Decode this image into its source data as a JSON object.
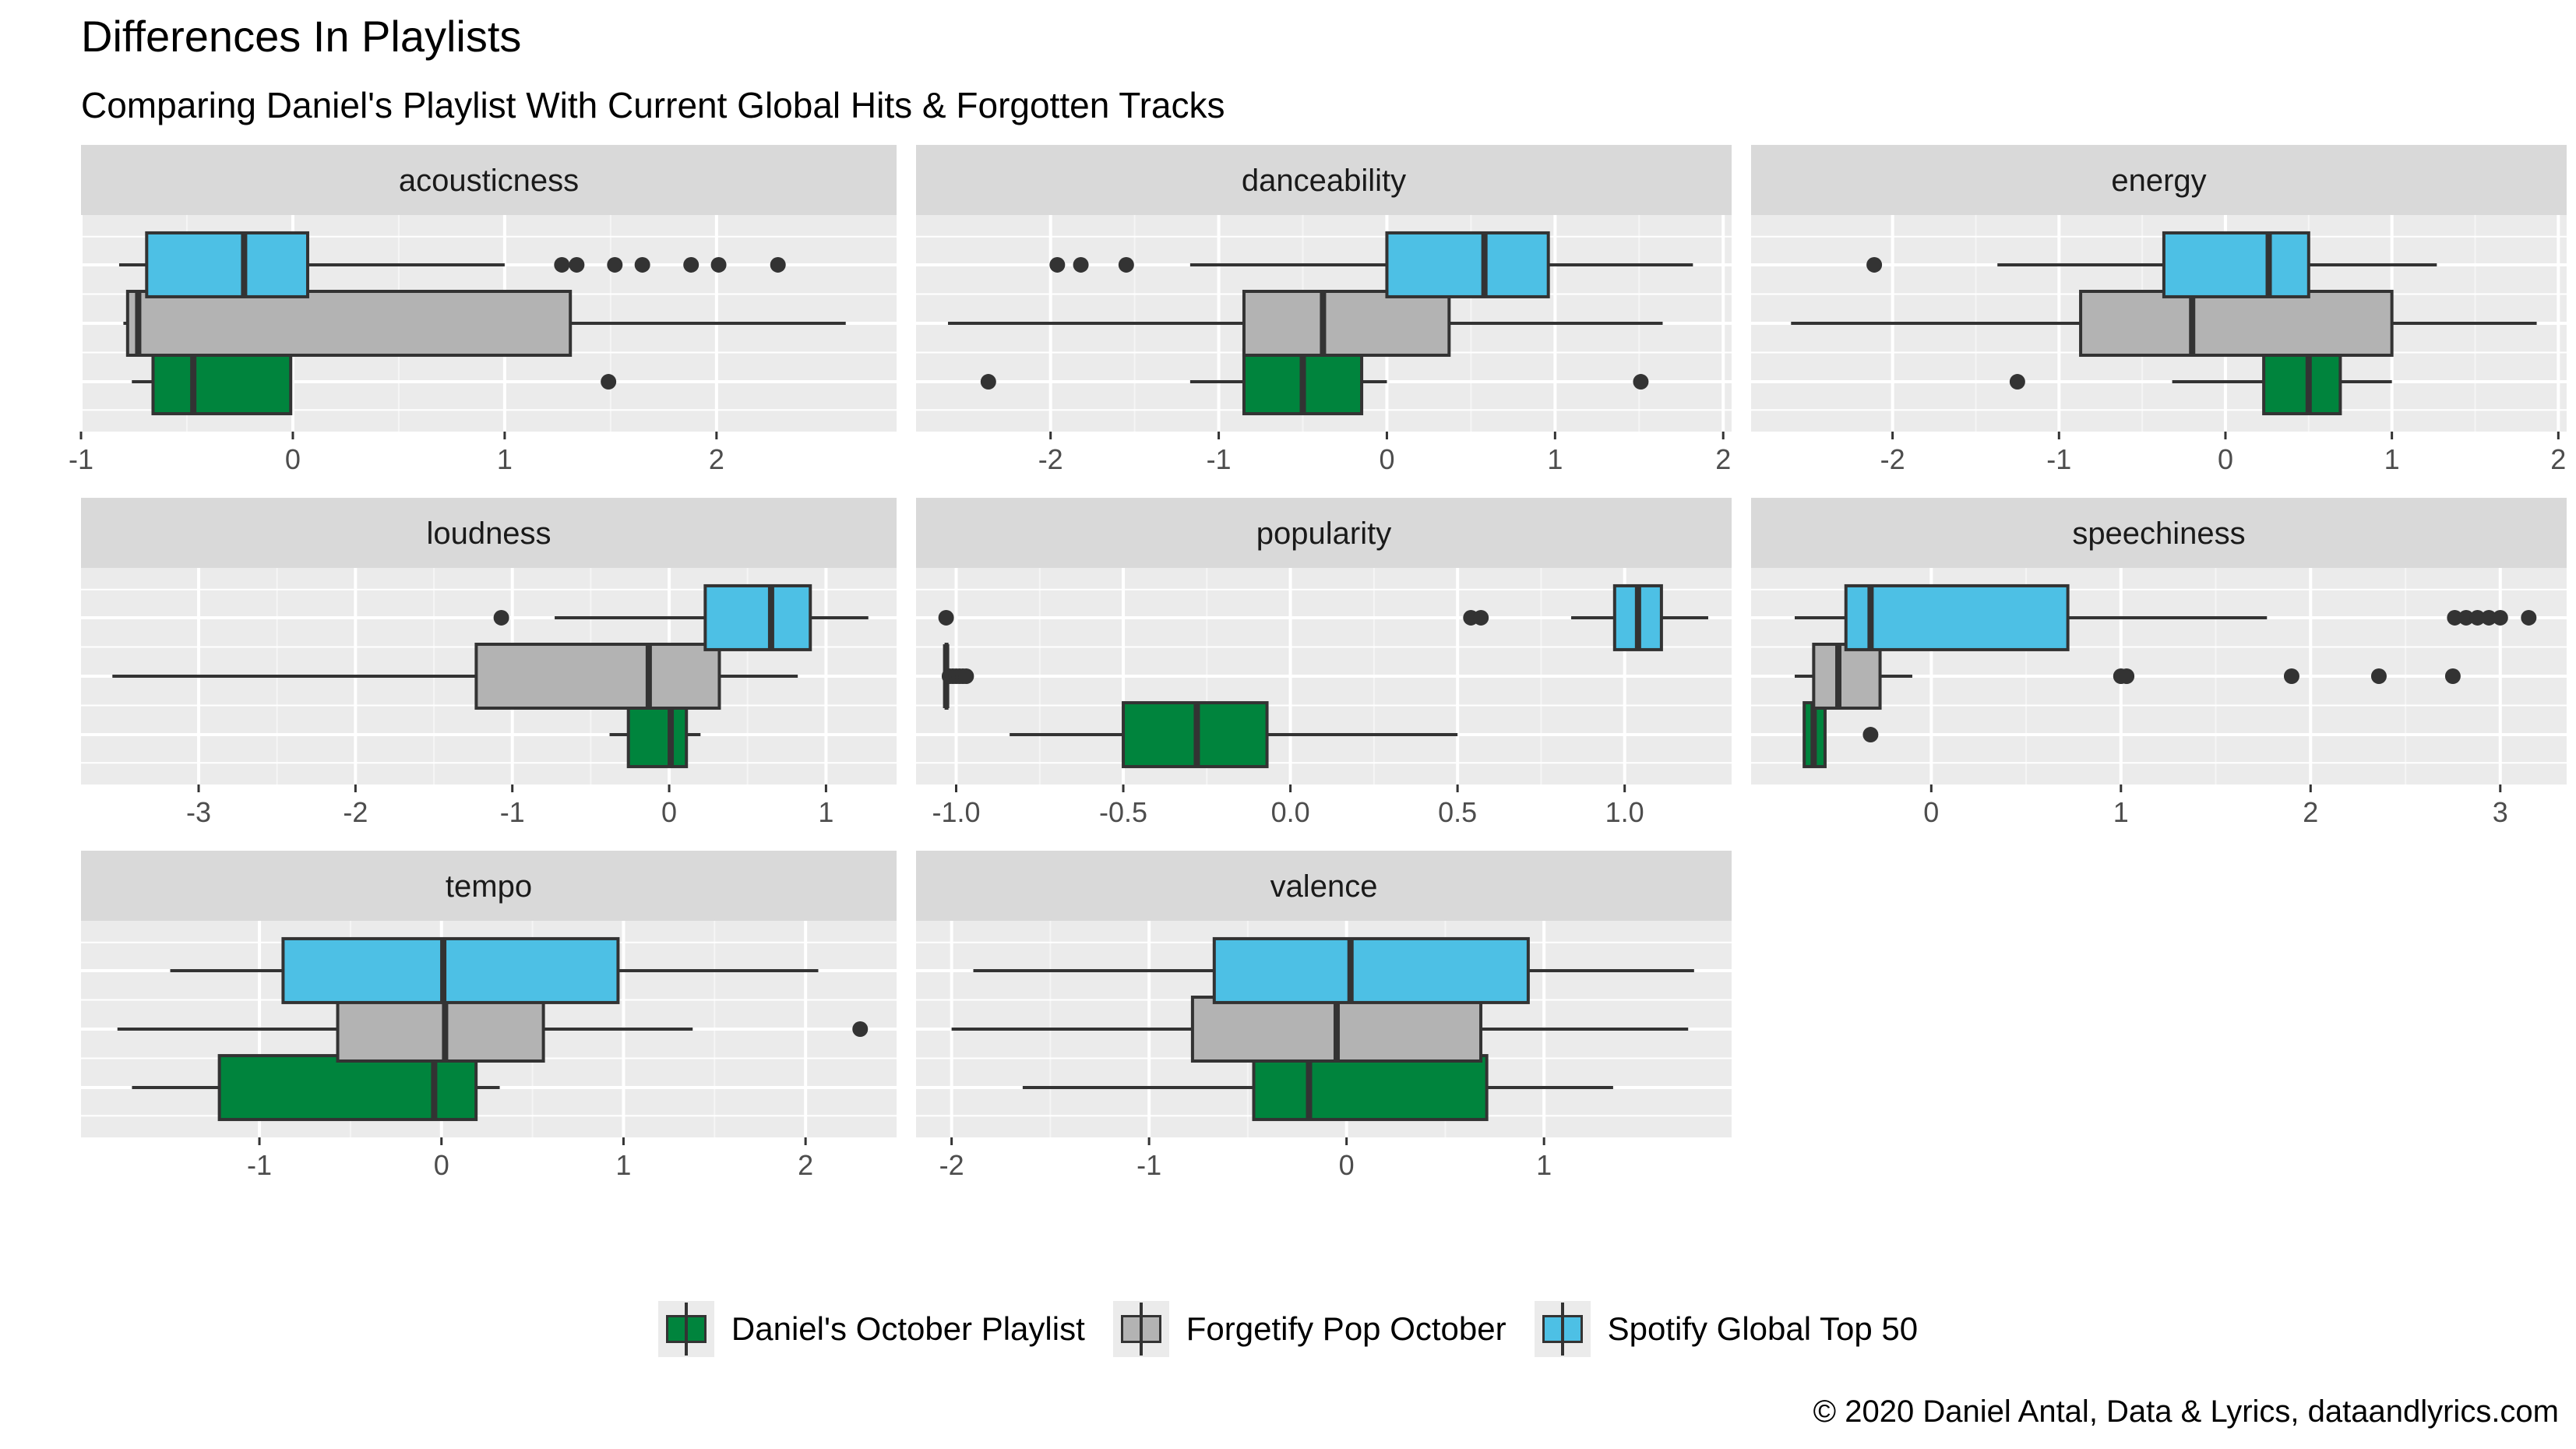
{
  "title": "Differences In Playlists",
  "subtitle": "Comparing Daniel's Playlist With Current Global Hits & Forgotten Tracks",
  "caption": "© 2020 Daniel Antal, Data & Lyrics, dataandlyrics.com",
  "chart_data": {
    "type": "boxplot",
    "orientation": "horizontal",
    "grid": true,
    "legend_position": "bottom",
    "series": [
      {
        "name": "Daniel's October Playlist",
        "color": "#00843D"
      },
      {
        "name": "Forgetify Pop October",
        "color": "#B3B3B3"
      },
      {
        "name": "Spotify Global Top 50",
        "color": "#4DC0E5"
      }
    ],
    "panels": [
      {
        "name": "acousticness",
        "xlim": [
          -1,
          2.85
        ],
        "ticks": [
          -1,
          0,
          1,
          2
        ],
        "boxes": [
          {
            "series": "Daniel's October Playlist",
            "whisker_low": -0.76,
            "q1": -0.66,
            "median": -0.47,
            "q3": -0.01,
            "whisker_high": -0.01,
            "outliers": [
              1.49
            ]
          },
          {
            "series": "Forgetify Pop October",
            "whisker_low": -0.8,
            "q1": -0.78,
            "median": -0.73,
            "q3": 1.31,
            "whisker_high": 2.61,
            "outliers": []
          },
          {
            "series": "Spotify Global Top 50",
            "whisker_low": -0.82,
            "q1": -0.69,
            "median": -0.23,
            "q3": 0.07,
            "whisker_high": 1.0,
            "outliers": [
              1.27,
              1.34,
              1.52,
              1.65,
              1.88,
              2.01,
              2.29
            ]
          }
        ]
      },
      {
        "name": "danceability",
        "xlim": [
          -2.8,
          2.05
        ],
        "ticks": [
          -2,
          -1,
          0,
          1,
          2
        ],
        "boxes": [
          {
            "series": "Daniel's October Playlist",
            "whisker_low": -1.17,
            "q1": -0.85,
            "median": -0.5,
            "q3": -0.15,
            "whisker_high": 0.0,
            "outliers": [
              -2.37,
              1.51
            ]
          },
          {
            "series": "Forgetify Pop October",
            "whisker_low": -2.61,
            "q1": -0.85,
            "median": -0.38,
            "q3": 0.37,
            "whisker_high": 1.64,
            "outliers": []
          },
          {
            "series": "Spotify Global Top 50",
            "whisker_low": -1.17,
            "q1": 0.0,
            "median": 0.58,
            "q3": 0.96,
            "whisker_high": 1.82,
            "outliers": [
              -1.96,
              -1.82,
              -1.55
            ]
          }
        ]
      },
      {
        "name": "energy",
        "xlim": [
          -2.85,
          2.05
        ],
        "ticks": [
          -2,
          -1,
          0,
          1,
          2
        ],
        "boxes": [
          {
            "series": "Daniel's October Playlist",
            "whisker_low": -0.32,
            "q1": 0.23,
            "median": 0.5,
            "q3": 0.69,
            "whisker_high": 1.0,
            "outliers": [
              -1.25
            ]
          },
          {
            "series": "Forgetify Pop October",
            "whisker_low": -2.61,
            "q1": -0.87,
            "median": -0.2,
            "q3": 1.0,
            "whisker_high": 1.87,
            "outliers": []
          },
          {
            "series": "Spotify Global Top 50",
            "whisker_low": -1.37,
            "q1": -0.37,
            "median": 0.26,
            "q3": 0.5,
            "whisker_high": 1.27,
            "outliers": [
              -2.11
            ]
          }
        ]
      },
      {
        "name": "loudness",
        "xlim": [
          -3.75,
          1.45
        ],
        "ticks": [
          -3,
          -2,
          -1,
          0,
          1
        ],
        "boxes": [
          {
            "series": "Daniel's October Playlist",
            "whisker_low": -0.38,
            "q1": -0.26,
            "median": 0.01,
            "q3": 0.11,
            "whisker_high": 0.2,
            "outliers": []
          },
          {
            "series": "Forgetify Pop October",
            "whisker_low": -3.55,
            "q1": -1.23,
            "median": -0.13,
            "q3": 0.32,
            "whisker_high": 0.82,
            "outliers": []
          },
          {
            "series": "Spotify Global Top 50",
            "whisker_low": -0.73,
            "q1": 0.23,
            "median": 0.65,
            "q3": 0.9,
            "whisker_high": 1.27,
            "outliers": [
              -1.07
            ]
          }
        ]
      },
      {
        "name": "popularity",
        "xlim": [
          -1.12,
          1.32
        ],
        "ticks": [
          -1.0,
          -0.5,
          0.0,
          0.5,
          1.0
        ],
        "tick_labels": [
          "-1.0",
          "-0.5",
          "0.0",
          "0.5",
          "1.0"
        ],
        "boxes": [
          {
            "series": "Daniel's October Playlist",
            "whisker_low": -0.84,
            "q1": -0.5,
            "median": -0.28,
            "q3": -0.07,
            "whisker_high": 0.5,
            "outliers": []
          },
          {
            "series": "Forgetify Pop October",
            "whisker_low": -1.03,
            "q1": -1.03,
            "median": -1.03,
            "q3": -1.03,
            "whisker_high": -1.03,
            "outliers": [
              -1.02,
              -1.01,
              -1.0,
              -0.99,
              -0.98,
              -0.97
            ]
          },
          {
            "series": "Spotify Global Top 50",
            "whisker_low": 0.84,
            "q1": 0.97,
            "median": 1.04,
            "q3": 1.11,
            "whisker_high": 1.25,
            "outliers": [
              -1.03,
              0.54,
              0.57
            ]
          }
        ]
      },
      {
        "name": "speechiness",
        "xlim": [
          -0.95,
          3.35
        ],
        "ticks": [
          0,
          1,
          2,
          3
        ],
        "boxes": [
          {
            "series": "Daniel's October Playlist",
            "whisker_low": -0.67,
            "q1": -0.67,
            "median": -0.62,
            "q3": -0.56,
            "whisker_high": -0.56,
            "outliers": [
              -0.32
            ]
          },
          {
            "series": "Forgetify Pop October",
            "whisker_low": -0.72,
            "q1": -0.62,
            "median": -0.49,
            "q3": -0.27,
            "whisker_high": -0.1,
            "outliers": [
              1.0,
              1.03,
              1.9,
              2.36,
              2.75
            ]
          },
          {
            "series": "Spotify Global Top 50",
            "whisker_low": -0.72,
            "q1": -0.45,
            "median": -0.32,
            "q3": 0.72,
            "whisker_high": 1.77,
            "outliers": [
              2.76,
              2.82,
              2.88,
              2.94,
              3.0,
              3.15
            ]
          }
        ]
      },
      {
        "name": "tempo",
        "xlim": [
          -1.98,
          2.5
        ],
        "ticks": [
          -1,
          0,
          1,
          2
        ],
        "boxes": [
          {
            "series": "Daniel's October Playlist",
            "whisker_low": -1.7,
            "q1": -1.22,
            "median": -0.04,
            "q3": 0.19,
            "whisker_high": 0.32,
            "outliers": []
          },
          {
            "series": "Forgetify Pop October",
            "whisker_low": -1.78,
            "q1": -0.57,
            "median": 0.02,
            "q3": 0.56,
            "whisker_high": 1.38,
            "outliers": [
              2.3
            ]
          },
          {
            "series": "Spotify Global Top 50",
            "whisker_low": -1.49,
            "q1": -0.87,
            "median": 0.01,
            "q3": 0.97,
            "whisker_high": 2.07,
            "outliers": []
          }
        ]
      },
      {
        "name": "valence",
        "xlim": [
          -2.18,
          1.95
        ],
        "ticks": [
          -2,
          -1,
          0,
          1
        ],
        "boxes": [
          {
            "series": "Daniel's October Playlist",
            "whisker_low": -1.64,
            "q1": -0.47,
            "median": -0.19,
            "q3": 0.71,
            "whisker_high": 1.35,
            "outliers": []
          },
          {
            "series": "Forgetify Pop October",
            "whisker_low": -2.0,
            "q1": -0.78,
            "median": -0.05,
            "q3": 0.68,
            "whisker_high": 1.73,
            "outliers": []
          },
          {
            "series": "Spotify Global Top 50",
            "whisker_low": -1.89,
            "q1": -0.67,
            "median": 0.02,
            "q3": 0.92,
            "whisker_high": 1.76,
            "outliers": []
          }
        ]
      }
    ]
  }
}
